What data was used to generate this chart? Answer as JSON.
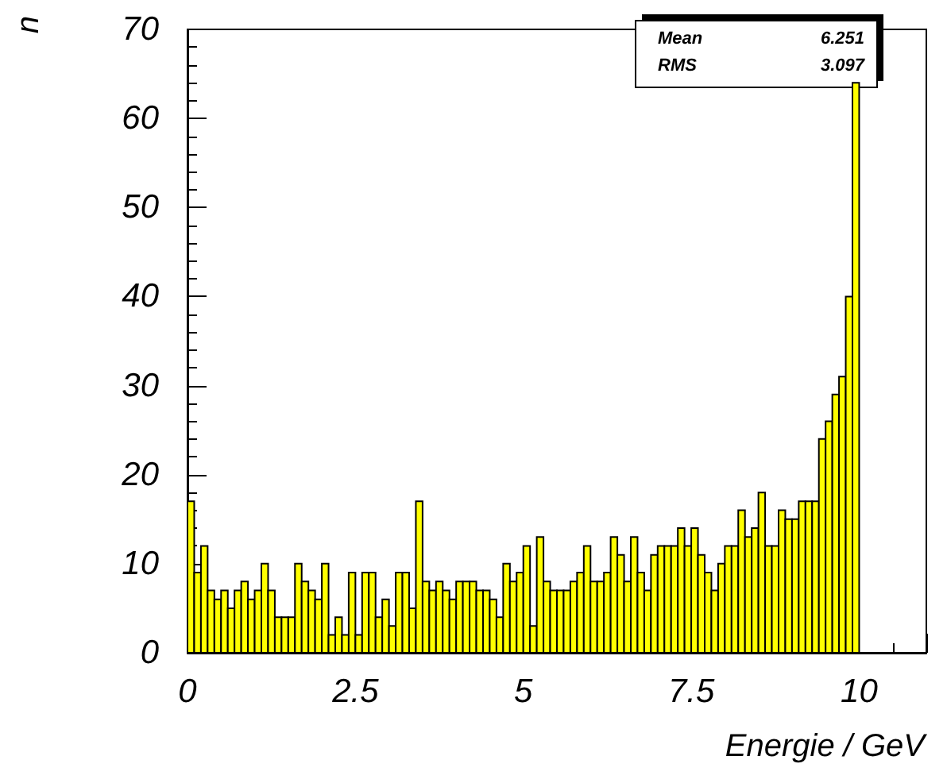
{
  "chart_data": {
    "type": "histogram",
    "xlabel": "Energie / GeV",
    "ylabel": "n",
    "bins": [
      0,
      0.1,
      0.2,
      0.3,
      0.4,
      0.5,
      0.6,
      0.7,
      0.8,
      0.9,
      1,
      1.1,
      1.2,
      1.3,
      1.4,
      1.5,
      1.6,
      1.7,
      1.8,
      1.9,
      2,
      2.1,
      2.2,
      2.3,
      2.4,
      2.5,
      2.6,
      2.7,
      2.8,
      2.9,
      3,
      3.1,
      3.2,
      3.3,
      3.4,
      3.5,
      3.6,
      3.7,
      3.8,
      3.9,
      4,
      4.1,
      4.2,
      4.3,
      4.4,
      4.5,
      4.6,
      4.7,
      4.8,
      4.9,
      5,
      5.1,
      5.2,
      5.3,
      5.4,
      5.5,
      5.6,
      5.7,
      5.8,
      5.9,
      6,
      6.1,
      6.2,
      6.3,
      6.4,
      6.5,
      6.6,
      6.7,
      6.8,
      6.9,
      7,
      7.1,
      7.2,
      7.3,
      7.4,
      7.5,
      7.6,
      7.7,
      7.8,
      7.9,
      8,
      8.1,
      8.2,
      8.3,
      8.4,
      8.5,
      8.6,
      8.7,
      8.8,
      8.9,
      9,
      9.1,
      9.2,
      9.3,
      9.4,
      9.5,
      9.6,
      9.7,
      9.8,
      9.9,
      10
    ],
    "values": [
      17,
      9,
      12,
      7,
      6,
      7,
      5,
      7,
      8,
      6,
      7,
      10,
      7,
      4,
      4,
      4,
      10,
      8,
      7,
      6,
      10,
      2,
      4,
      2,
      9,
      2,
      9,
      9,
      4,
      6,
      3,
      9,
      9,
      5,
      17,
      8,
      7,
      8,
      7,
      6,
      8,
      8,
      8,
      7,
      7,
      6,
      4,
      10,
      8,
      9,
      12,
      3,
      13,
      8,
      7,
      7,
      7,
      8,
      9,
      12,
      8,
      8,
      9,
      13,
      11,
      8,
      13,
      9,
      7,
      11,
      12,
      12,
      12,
      14,
      12,
      14,
      11,
      9,
      7,
      10,
      12,
      12,
      16,
      13,
      14,
      18,
      12,
      12,
      16,
      15,
      15,
      17,
      17,
      17,
      24,
      26,
      29,
      31,
      40,
      64
    ],
    "color": "#ffff00",
    "xlim": [
      0,
      11
    ],
    "xticks": [
      0,
      2.5,
      5,
      7.5,
      10
    ],
    "ylim": [
      0,
      70
    ],
    "yticks": [
      0,
      10,
      20,
      30,
      40,
      50,
      60,
      70
    ],
    "annotations": [
      "Mean 6.251",
      "RMS 3.097"
    ]
  }
}
